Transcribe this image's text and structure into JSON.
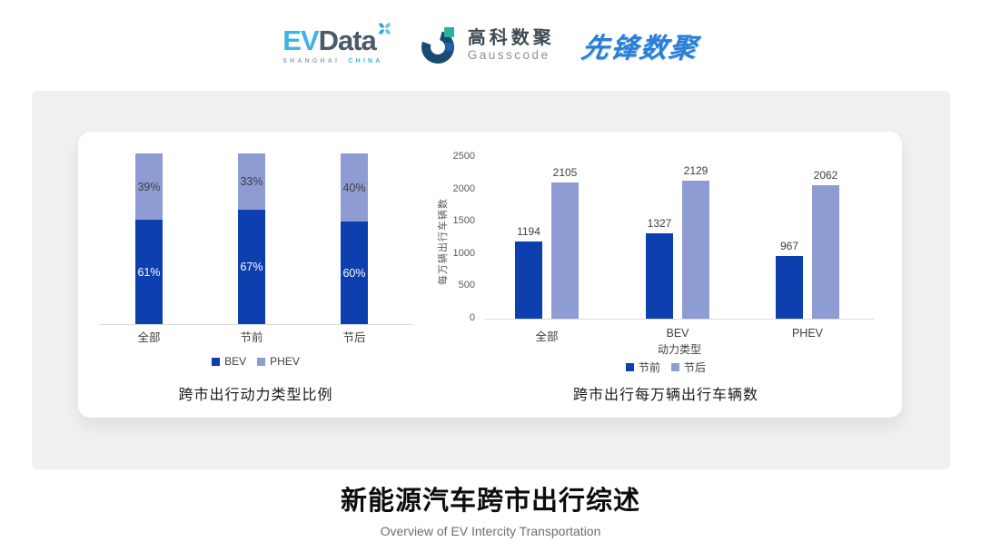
{
  "header": {
    "evdata": {
      "part1": "EV",
      "part2": "Data",
      "tagline_left": "SHANGHAI",
      "tagline_right": "CHINA"
    },
    "gausscode": {
      "name_cn": "高科数聚",
      "name_en": "Gausscode"
    },
    "pioneer": {
      "name": "先锋数聚"
    }
  },
  "colors": {
    "bev_dark_blue": "#0e3fae",
    "phev_light_blue": "#8e9cd3",
    "evdata_cyan": "#3fb3e3",
    "evdata_slate": "#4a5a6b",
    "gausscode_navy": "#1b4a70",
    "gausscode_teal": "#27b3a2",
    "gausscode_blue": "#1766ab",
    "pioneer_blue": "#2b7ed6",
    "panel_gray": "#f0f0f1",
    "axis_gray": "#d9d9d9",
    "tick_gray": "#595959",
    "label_gray": "#404040"
  },
  "chart_data": [
    {
      "type": "bar",
      "variant": "stacked-percent",
      "title": "跨市出行动力类型比例",
      "categories": [
        "全部",
        "节前",
        "节后"
      ],
      "series": [
        {
          "name": "BEV",
          "color_key": "bev_dark_blue",
          "values": [
            61,
            67,
            60
          ]
        },
        {
          "name": "PHEV",
          "color_key": "phev_light_blue",
          "values": [
            39,
            33,
            40
          ]
        }
      ],
      "value_suffix": "%",
      "ylim": [
        0,
        100
      ],
      "legend": [
        "BEV",
        "PHEV"
      ],
      "legend_position": "bottom",
      "grid": false
    },
    {
      "type": "bar",
      "variant": "grouped",
      "title": "跨市出行每万辆出行车辆数",
      "categories": [
        "全部",
        "BEV",
        "PHEV"
      ],
      "series": [
        {
          "name": "节前",
          "color_key": "bev_dark_blue",
          "values": [
            1194,
            1327,
            967
          ]
        },
        {
          "name": "节后",
          "color_key": "phev_light_blue",
          "values": [
            2105,
            2129,
            2062
          ]
        }
      ],
      "xlabel": "动力类型",
      "ylabel": "每万辆出行车辆数",
      "yticks": [
        0,
        500,
        1000,
        1500,
        2000,
        2500
      ],
      "ylim": [
        0,
        2500
      ],
      "legend": [
        "节前",
        "节后"
      ],
      "legend_position": "bottom",
      "grid": false
    }
  ],
  "footer": {
    "title": "新能源汽车跨市出行综述",
    "subtitle": "Overview of EV Intercity Transportation"
  }
}
